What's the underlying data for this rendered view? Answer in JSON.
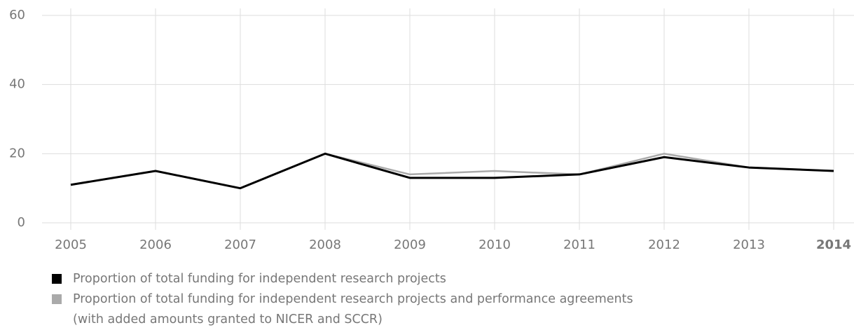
{
  "chart_data": {
    "type": "line",
    "categories": [
      "2005",
      "2006",
      "2007",
      "2008",
      "2009",
      "2010",
      "2011",
      "2012",
      "2013",
      "2014"
    ],
    "series": [
      {
        "name": "Proportion of total funding for independent research projects",
        "color": "#000000",
        "values": [
          11,
          15,
          10,
          20,
          13,
          13,
          14,
          19,
          16,
          15
        ]
      },
      {
        "name": "Proportion of total funding for independent research projects and performance agreements\n(with added amounts granted to NICER and SCCR)",
        "color": "#aaaaaa",
        "values": [
          11,
          15,
          10,
          20,
          14,
          15,
          14,
          20,
          16,
          15
        ]
      }
    ],
    "ylim": [
      0,
      60
    ],
    "yticks": [
      0,
      20,
      40,
      60
    ],
    "grid": true
  }
}
